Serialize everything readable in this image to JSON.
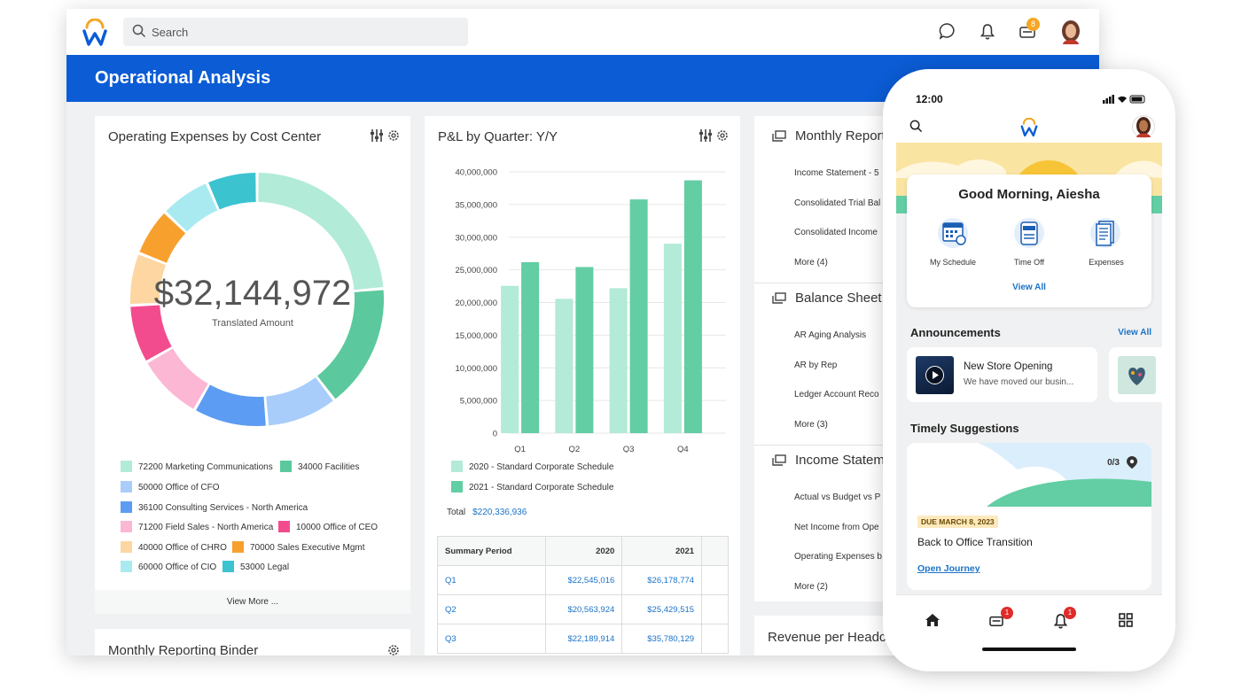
{
  "topbar": {
    "search_placeholder": "Search",
    "inbox_badge": "8"
  },
  "page": {
    "title": "Operational Analysis"
  },
  "opex_card": {
    "title": "Operating Expenses by Cost Center",
    "amount": "$32,144,972",
    "amount_label": "Translated Amount",
    "view_more": "View More ...",
    "legend": [
      {
        "label": "72200 Marketing Communications",
        "color": "#b2ebd8"
      },
      {
        "label": "34000 Facilities",
        "color": "#5bc99d"
      },
      {
        "label": "50000 Office of CFO",
        "color": "#a8cdfb"
      },
      {
        "label": "36100 Consulting Services - North America",
        "color": "#5c9cf2"
      },
      {
        "label": "71200 Field Sales - North America",
        "color": "#fbb7d3"
      },
      {
        "label": "10000 Office of CEO",
        "color": "#f24c8e"
      },
      {
        "label": "40000 Office of CHRO",
        "color": "#fdd6a1"
      },
      {
        "label": "70000 Sales Executive Mgmt",
        "color": "#f8a02e"
      },
      {
        "label": "60000 Office of CIO",
        "color": "#a9eaf0"
      },
      {
        "label": "53000 Legal",
        "color": "#3bc3d0"
      }
    ]
  },
  "chart_data": {
    "type": "bar",
    "title": "P&L by Quarter: Y/Y",
    "categories": [
      "Q1",
      "Q2",
      "Q3",
      "Q4"
    ],
    "series": [
      {
        "name": "2020 - Standard Corporate Schedule",
        "color": "#b3ead8",
        "values": [
          22545016,
          20563924,
          22189914,
          29000000
        ]
      },
      {
        "name": "2021 - Standard Corporate Schedule",
        "color": "#63cda3",
        "values": [
          26178774,
          25429515,
          35780129,
          38700000
        ]
      }
    ],
    "ylim": [
      0,
      40000000
    ],
    "yticks": [
      "40,000,000",
      "35,000,000",
      "30,000,000",
      "25,000,000",
      "20,000,000",
      "15,000,000",
      "10,000,000",
      "5,000,000",
      "0"
    ],
    "grid": true,
    "legend_position": "bottom"
  },
  "pl_card": {
    "total_label": "Total",
    "total_value": "$220,336,936",
    "table": {
      "headers": [
        "Summary Period",
        "2020",
        "2021"
      ],
      "rows": [
        [
          "Q1",
          "$22,545,016",
          "$26,178,774"
        ],
        [
          "Q2",
          "$20,563,924",
          "$25,429,515"
        ],
        [
          "Q3",
          "$22,189,914",
          "$35,780,129"
        ]
      ]
    }
  },
  "reports_card": {
    "sections": [
      {
        "title": "Monthly Reporti",
        "items": [
          "Income Statement - 5",
          "Consolidated Trial Bal",
          "Consolidated Income",
          "More (4)"
        ]
      },
      {
        "title": "Balance Sheet R",
        "items": [
          "AR Aging Analysis",
          "AR by Rep",
          "Ledger Account Reco",
          "More (3)"
        ]
      },
      {
        "title": "Income Stateme",
        "items": [
          "Actual vs Budget vs P",
          "Net Income from Ope",
          "Operating Expenses b",
          "More (2)"
        ]
      }
    ]
  },
  "binder_card": {
    "title": "Monthly Reporting Binder"
  },
  "revenue_card": {
    "title": "Revenue per Headco"
  },
  "phone": {
    "time": "12:00",
    "greeting": "Good Morning, Aiesha",
    "quick_actions": [
      "My Schedule",
      "Time Off",
      "Expenses"
    ],
    "quick_view_all": "View All",
    "announcements_title": "Announcements",
    "announcements_view_all": "View All",
    "announcement": {
      "title": "New Store Opening",
      "text": "We have moved our busin..."
    },
    "suggestions_title": "Timely Suggestions",
    "suggestion": {
      "count": "0/3",
      "due": "DUE MARCH 8, 2023",
      "title": "Back to Office Transition",
      "link": "Open Journey"
    },
    "nav_badges": [
      "1",
      "1"
    ]
  },
  "colors": {
    "brand_blue": "#0b5cd5",
    "link_blue": "#1a73c8",
    "brand_orange": "#f5a623"
  }
}
